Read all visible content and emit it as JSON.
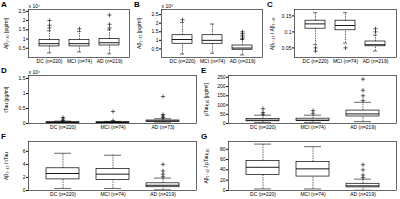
{
  "chart_data": [
    {
      "type": "box",
      "title": "A",
      "y_label": "Aβ₁₋₄₀ [pg/ml]",
      "annotations": [
        "x 10⁴"
      ],
      "color": "#000000",
      "marker": "plus",
      "categories": [
        "DC (n=220)",
        "MCI (n=74)",
        "AD (n=219)"
      ],
      "boxes": [
        {
          "min": 0.25,
          "q1": 0.6,
          "median": 0.75,
          "q3": 0.95,
          "max": 1.45,
          "outliers": [
            1.6,
            1.75,
            2.0
          ]
        },
        {
          "min": 0.3,
          "q1": 0.6,
          "median": 0.75,
          "q3": 0.95,
          "max": 1.4,
          "outliers": [
            1.55
          ]
        },
        {
          "min": 0.2,
          "q1": 0.65,
          "median": 0.8,
          "q3": 1.0,
          "max": 1.5,
          "outliers": [
            1.6,
            1.8,
            2.3
          ]
        }
      ],
      "ylim": [
        0,
        2.6
      ],
      "yticks": [
        0.5,
        1,
        1.5,
        2,
        2.5
      ]
    },
    {
      "type": "box",
      "title": "B",
      "y_label": "Aβ₁₋₄₂ [pg/ml]",
      "annotations": [
        "x 10³"
      ],
      "color": "#000000",
      "marker": "plus",
      "categories": [
        "DC (n=220)",
        "MCI (n=74)",
        "AD (n=219)"
      ],
      "boxes": [
        {
          "min": 0.2,
          "q1": 0.8,
          "median": 1.05,
          "q3": 1.3,
          "max": 2.05,
          "outliers": [
            2.2
          ]
        },
        {
          "min": 0.25,
          "q1": 0.8,
          "median": 1.0,
          "q3": 1.3,
          "max": 1.95,
          "outliers": []
        },
        {
          "min": 0.15,
          "q1": 0.45,
          "median": 0.55,
          "q3": 0.7,
          "max": 1.05,
          "outliers": [
            1.1,
            1.2,
            1.3,
            1.4,
            1.5
          ]
        }
      ],
      "ylim": [
        0,
        2.8
      ],
      "yticks": [
        0.5,
        1,
        1.5,
        2,
        2.5
      ]
    },
    {
      "type": "box",
      "title": "C",
      "y_label": "Aβ₁₋₄₂ / Aβ₁₋₄₀",
      "color": "#000000",
      "marker": "plus",
      "categories": [
        "DC (n=220)",
        "MCI (n=74)",
        "AD (n=219)"
      ],
      "boxes": [
        {
          "min": 0.06,
          "q1": 0.11,
          "median": 0.125,
          "q3": 0.135,
          "max": 0.16,
          "outliers": [
            0.04,
            0.05
          ]
        },
        {
          "min": 0.065,
          "q1": 0.105,
          "median": 0.12,
          "q3": 0.135,
          "max": 0.16,
          "outliers": [
            0.05
          ]
        },
        {
          "min": 0.04,
          "q1": 0.055,
          "median": 0.06,
          "q3": 0.07,
          "max": 0.09,
          "outliers": [
            0.1,
            0.11
          ]
        }
      ],
      "ylim": [
        0.02,
        0.17
      ],
      "yticks": [
        0.05,
        0.1,
        0.15
      ]
    },
    {
      "type": "box",
      "title": "D",
      "y_label": "tTau [pg/ml]",
      "annotations": [
        "x 10⁴"
      ],
      "color": "#000000",
      "marker": "plus",
      "categories": [
        "DC (n=220)",
        "MCI (n=74)",
        "AD (n=73)"
      ],
      "boxes": [
        {
          "min": 0.005,
          "q1": 0.02,
          "median": 0.03,
          "q3": 0.045,
          "max": 0.08,
          "outliers": [
            0.1,
            0.15,
            0.2
          ]
        },
        {
          "min": 0.01,
          "q1": 0.02,
          "median": 0.03,
          "q3": 0.045,
          "max": 0.07,
          "outliers": [
            0.1,
            0.4
          ]
        },
        {
          "min": 0.02,
          "q1": 0.06,
          "median": 0.08,
          "q3": 0.1,
          "max": 0.16,
          "outliers": [
            0.2,
            0.25,
            0.3,
            0.9
          ]
        }
      ],
      "ylim": [
        0,
        1.6
      ],
      "yticks": [
        0,
        0.5,
        1,
        1.5
      ]
    },
    {
      "type": "box",
      "title": "E",
      "y_label": "pTau₁₈₁ [pg/ml]",
      "color": "#000000",
      "marker": "plus",
      "categories": [
        "DC (n=220)",
        "MCI (n=74)",
        "AD (n=219)"
      ],
      "boxes": [
        {
          "min": 5,
          "q1": 12,
          "median": 18,
          "q3": 25,
          "max": 45,
          "outliers": [
            50,
            60,
            80
          ]
        },
        {
          "min": 6,
          "q1": 13,
          "median": 18,
          "q3": 26,
          "max": 45,
          "outliers": [
            55,
            70
          ]
        },
        {
          "min": 10,
          "q1": 38,
          "median": 52,
          "q3": 70,
          "max": 115,
          "outliers": [
            125,
            150,
            180,
            240
          ]
        }
      ],
      "ylim": [
        0,
        260
      ],
      "yticks": [
        0,
        50,
        100,
        150,
        200,
        250
      ]
    },
    {
      "type": "box",
      "title": "F",
      "y_label": "Aβ₁₋₄₂ / tTau",
      "color": "#000000",
      "marker": "plus",
      "categories": [
        "DC (n=220)",
        "MCI (n=74)",
        "AD (n=219)"
      ],
      "boxes": [
        {
          "min": 0.3,
          "q1": 1.7,
          "median": 2.6,
          "q3": 3.4,
          "max": 5.7,
          "outliers": []
        },
        {
          "min": 0.3,
          "q1": 1.6,
          "median": 2.5,
          "q3": 3.3,
          "max": 5.4,
          "outliers": []
        },
        {
          "min": 0.1,
          "q1": 0.5,
          "median": 0.8,
          "q3": 1.1,
          "max": 1.9,
          "outliers": [
            2.1,
            2.5,
            3,
            4
          ]
        }
      ],
      "ylim": [
        0,
        7.5
      ],
      "yticks": [
        0,
        2,
        4,
        6
      ]
    },
    {
      "type": "box",
      "title": "G",
      "y_label": "Aβ₁₋₄₂ / pTau₁₈₁",
      "color": "#000000",
      "marker": "plus",
      "categories": [
        "DC (n=220)",
        "MCI (n=74)",
        "AD (n=219)"
      ],
      "boxes": [
        {
          "min": 3,
          "q1": 30,
          "median": 45,
          "q3": 57,
          "max": 90,
          "outliers": []
        },
        {
          "min": 3,
          "q1": 27,
          "median": 42,
          "q3": 55,
          "max": 85,
          "outliers": []
        },
        {
          "min": 0.5,
          "q1": 6,
          "median": 9,
          "q3": 13,
          "max": 22,
          "outliers": [
            25,
            30,
            40,
            50
          ]
        }
      ],
      "ylim": [
        0,
        95
      ],
      "yticks": [
        0,
        20,
        40,
        60,
        80
      ]
    }
  ]
}
